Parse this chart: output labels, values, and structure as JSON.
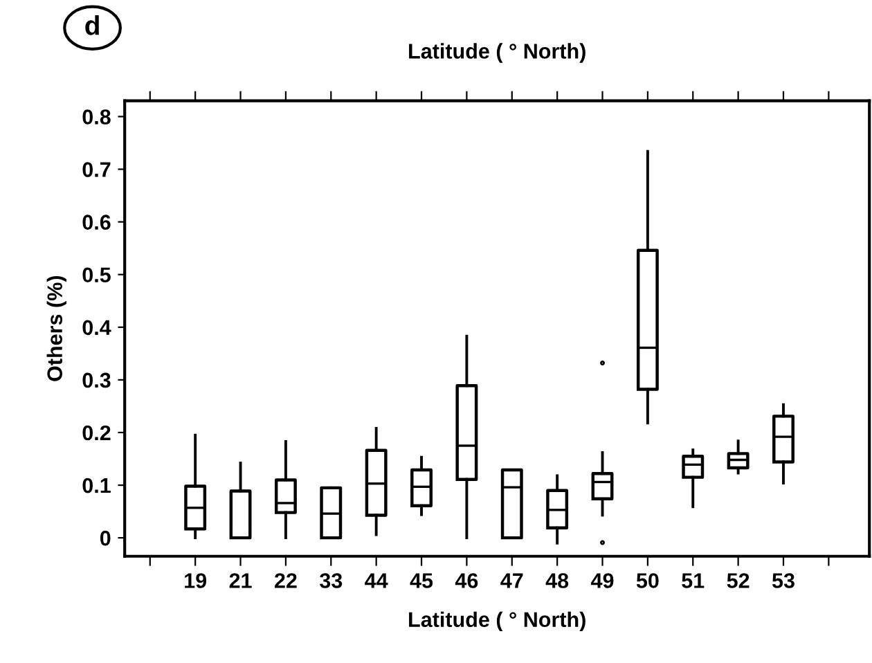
{
  "chart_data": {
    "type": "box",
    "title": "Latitude ( ° North)",
    "xlabel": "Latitude ( ° North)",
    "ylabel": "Others (%)",
    "annotations": [
      "d"
    ],
    "categories": [
      "19",
      "21",
      "22",
      "33",
      "44",
      "45",
      "46",
      "47",
      "48",
      "49",
      "50",
      "51",
      "52",
      "53"
    ],
    "boxes": [
      {
        "low": 0,
        "q1": 0.017,
        "median": 0.057,
        "q3": 0.098,
        "high": 0.195
      },
      {
        "low": 0,
        "q1": 0,
        "median": 0,
        "q3": 0.089,
        "high": 0.142
      },
      {
        "low": 0,
        "q1": 0.048,
        "median": 0.066,
        "q3": 0.11,
        "high": 0.183
      },
      {
        "low": 0,
        "q1": 0,
        "median": 0.046,
        "q3": 0.095,
        "high": 0.095
      },
      {
        "low": 0.006,
        "q1": 0.043,
        "median": 0.103,
        "q3": 0.166,
        "high": 0.208
      },
      {
        "low": 0.044,
        "q1": 0.061,
        "median": 0.097,
        "q3": 0.129,
        "high": 0.153
      },
      {
        "low": 0,
        "q1": 0.111,
        "median": 0.175,
        "q3": 0.289,
        "high": 0.383
      },
      {
        "low": 0,
        "q1": 0,
        "median": 0.096,
        "q3": 0.129,
        "high": 0.129
      },
      {
        "low": -0.01,
        "q1": 0.019,
        "median": 0.053,
        "q3": 0.09,
        "high": 0.118
      },
      {
        "low": 0.043,
        "q1": 0.074,
        "median": 0.106,
        "q3": 0.122,
        "high": 0.162,
        "outliers": [
          0.332,
          -0.009
        ]
      },
      {
        "low": 0.218,
        "q1": 0.282,
        "median": 0.361,
        "q3": 0.546,
        "high": 0.734
      },
      {
        "low": 0.059,
        "q1": 0.115,
        "median": 0.139,
        "q3": 0.155,
        "high": 0.167
      },
      {
        "low": 0.123,
        "q1": 0.133,
        "median": 0.148,
        "q3": 0.16,
        "high": 0.184
      },
      {
        "low": 0.104,
        "q1": 0.144,
        "median": 0.192,
        "q3": 0.231,
        "high": 0.253
      }
    ],
    "ylim": [
      -0.035,
      0.83
    ],
    "yticks": [
      {
        "value": 0,
        "label": "0"
      },
      0.1,
      0.2,
      0.3,
      0.4,
      0.5,
      0.6,
      0.7,
      0.8
    ],
    "grid": false,
    "legend": false
  }
}
